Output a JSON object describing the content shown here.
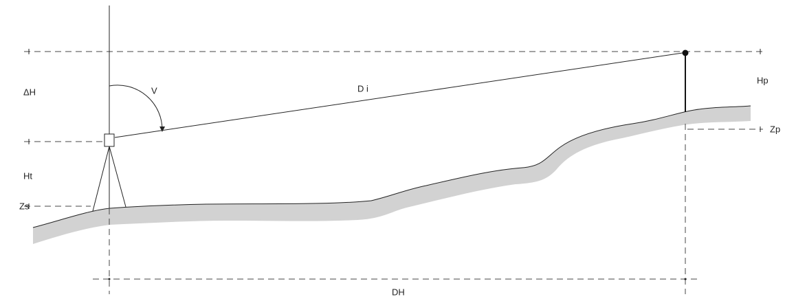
{
  "labels": {
    "delta_h": "ΔH",
    "v": "V",
    "di": "D i",
    "hp": "Hp",
    "zp": "Zp",
    "ht": "Ht",
    "zs": "Zs",
    "dh": "DH"
  }
}
